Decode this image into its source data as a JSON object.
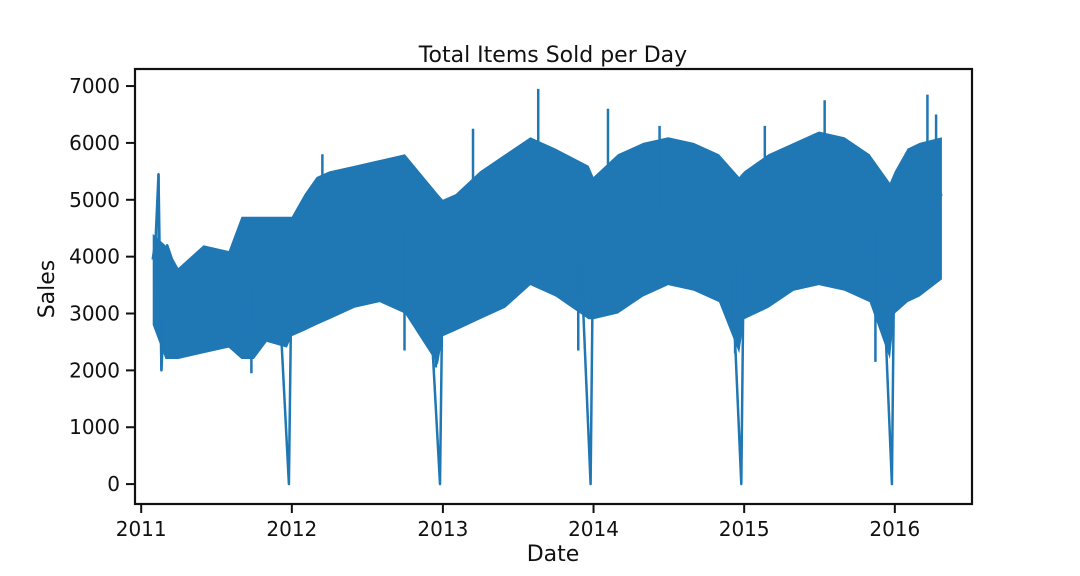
{
  "chart_data": {
    "type": "line",
    "title": "Total Items Sold per Day",
    "xlabel": "Date",
    "ylabel": "Sales",
    "x_ticks": [
      "2011",
      "2012",
      "2013",
      "2014",
      "2015",
      "2016"
    ],
    "y_ticks": [
      0,
      1000,
      2000,
      3000,
      4000,
      5000,
      6000,
      7000
    ],
    "xlim": [
      "2010-12-17",
      "2016-07-06"
    ],
    "ylim": [
      -350,
      7300
    ],
    "grid": false,
    "legend": "none",
    "series_color": "#1f77b4",
    "series": [
      {
        "points": [
          [
            "2011-01-29",
            3950
          ],
          [
            "2011-02-05",
            4300
          ],
          [
            "2011-02-12",
            5450
          ],
          [
            "2011-02-19",
            2000
          ],
          [
            "2011-03-05",
            4200
          ],
          [
            "2011-03-19",
            3900
          ],
          [
            "2011-04-02",
            2500
          ],
          [
            "2011-05-01",
            3100
          ],
          [
            "2011-06-01",
            3300
          ],
          [
            "2011-07-01",
            3000
          ],
          [
            "2011-08-01",
            3300
          ],
          [
            "2011-09-01",
            3300
          ],
          [
            "2011-09-30",
            2400
          ],
          [
            "2011-10-31",
            3200
          ],
          [
            "2011-11-30",
            3500
          ],
          [
            "2011-12-25",
            0
          ],
          [
            "2011-12-31",
            3500
          ],
          [
            "2012-01-31",
            3600
          ],
          [
            "2012-03-01",
            4100
          ],
          [
            "2012-04-01",
            4200
          ],
          [
            "2012-05-01",
            4100
          ],
          [
            "2012-06-01",
            4400
          ],
          [
            "2012-07-01",
            4300
          ],
          [
            "2012-08-01",
            4100
          ],
          [
            "2012-09-01",
            4400
          ],
          [
            "2012-10-01",
            4200
          ],
          [
            "2012-10-31",
            4000
          ],
          [
            "2012-11-30",
            3300
          ],
          [
            "2012-12-25",
            0
          ],
          [
            "2012-12-31",
            3500
          ],
          [
            "2013-01-31",
            3500
          ],
          [
            "2013-03-01",
            3800
          ],
          [
            "2013-04-01",
            4000
          ],
          [
            "2013-05-01",
            4300
          ],
          [
            "2013-06-01",
            4300
          ],
          [
            "2013-07-01",
            4500
          ],
          [
            "2013-08-01",
            4700
          ],
          [
            "2013-09-01",
            4600
          ],
          [
            "2013-10-01",
            4400
          ],
          [
            "2013-10-31",
            4300
          ],
          [
            "2013-12-01",
            4100
          ],
          [
            "2013-12-25",
            0
          ],
          [
            "2013-12-31",
            4200
          ],
          [
            "2014-01-31",
            4000
          ],
          [
            "2014-03-01",
            4100
          ],
          [
            "2014-04-01",
            4300
          ],
          [
            "2014-05-01",
            4500
          ],
          [
            "2014-06-01",
            4400
          ],
          [
            "2014-07-01",
            4600
          ],
          [
            "2014-08-01",
            4700
          ],
          [
            "2014-09-01",
            4600
          ],
          [
            "2014-10-01",
            4400
          ],
          [
            "2014-11-01",
            4100
          ],
          [
            "2014-12-01",
            4000
          ],
          [
            "2014-12-25",
            0
          ],
          [
            "2014-12-31",
            4100
          ],
          [
            "2015-01-31",
            4300
          ],
          [
            "2015-03-01",
            4400
          ],
          [
            "2015-04-01",
            4400
          ],
          [
            "2015-05-01",
            4500
          ],
          [
            "2015-06-01",
            4400
          ],
          [
            "2015-07-01",
            4600
          ],
          [
            "2015-08-01",
            4700
          ],
          [
            "2015-09-01",
            4400
          ],
          [
            "2015-10-01",
            4500
          ],
          [
            "2015-11-01",
            4100
          ],
          [
            "2015-12-01",
            4200
          ],
          [
            "2015-12-25",
            0
          ],
          [
            "2015-12-31",
            4300
          ],
          [
            "2016-01-31",
            4600
          ],
          [
            "2016-03-01",
            4800
          ],
          [
            "2016-04-01",
            4900
          ],
          [
            "2016-04-24",
            5100
          ]
        ]
      }
    ],
    "range_band": [
      [
        "2011-01-29",
        2800,
        4400
      ],
      [
        "2011-03-01",
        2200,
        4200
      ],
      [
        "2011-04-01",
        2200,
        3800
      ],
      [
        "2011-06-01",
        2300,
        4200
      ],
      [
        "2011-08-01",
        2400,
        4100
      ],
      [
        "2011-09-01",
        2200,
        4700
      ],
      [
        "2011-10-01",
        2200,
        4700
      ],
      [
        "2011-11-01",
        2500,
        4700
      ],
      [
        "2011-12-20",
        2400,
        4700
      ],
      [
        "2012-01-01",
        2600,
        4700
      ],
      [
        "2012-02-01",
        2700,
        5100
      ],
      [
        "2012-03-01",
        2800,
        5400
      ],
      [
        "2012-04-01",
        2900,
        5500
      ],
      [
        "2012-06-01",
        3100,
        5600
      ],
      [
        "2012-08-01",
        3200,
        5700
      ],
      [
        "2012-10-01",
        3000,
        5800
      ],
      [
        "2012-12-20",
        2100,
        5100
      ],
      [
        "2013-01-01",
        2600,
        5000
      ],
      [
        "2013-02-01",
        2700,
        5100
      ],
      [
        "2013-04-01",
        2900,
        5500
      ],
      [
        "2013-06-01",
        3100,
        5800
      ],
      [
        "2013-08-01",
        3500,
        6100
      ],
      [
        "2013-10-01",
        3300,
        5900
      ],
      [
        "2013-12-20",
        2900,
        5600
      ],
      [
        "2014-01-01",
        2900,
        5400
      ],
      [
        "2014-03-01",
        3000,
        5800
      ],
      [
        "2014-05-01",
        3300,
        6000
      ],
      [
        "2014-07-01",
        3500,
        6100
      ],
      [
        "2014-09-01",
        3400,
        6000
      ],
      [
        "2014-11-01",
        3200,
        5800
      ],
      [
        "2014-12-20",
        2300,
        5400
      ],
      [
        "2015-01-01",
        2900,
        5500
      ],
      [
        "2015-03-01",
        3100,
        5800
      ],
      [
        "2015-05-01",
        3400,
        6000
      ],
      [
        "2015-07-01",
        3500,
        6200
      ],
      [
        "2015-09-01",
        3400,
        6100
      ],
      [
        "2015-11-01",
        3200,
        5800
      ],
      [
        "2015-12-20",
        2200,
        5300
      ],
      [
        "2016-01-01",
        3000,
        5500
      ],
      [
        "2016-02-01",
        3200,
        5900
      ],
      [
        "2016-03-01",
        3300,
        6000
      ],
      [
        "2016-04-24",
        3600,
        6100
      ]
    ],
    "extremes": [
      [
        "2011-02-12",
        5450
      ],
      [
        "2011-02-19",
        2000
      ],
      [
        "2011-09-25",
        1950
      ],
      [
        "2012-03-15",
        5800
      ],
      [
        "2012-09-30",
        2350
      ],
      [
        "2012-12-15",
        2050
      ],
      [
        "2013-03-15",
        6250
      ],
      [
        "2013-08-20",
        6950
      ],
      [
        "2013-11-25",
        2350
      ],
      [
        "2014-02-05",
        6600
      ],
      [
        "2014-06-10",
        6300
      ],
      [
        "2014-12-10",
        2300
      ],
      [
        "2015-02-20",
        6300
      ],
      [
        "2015-07-15",
        6750
      ],
      [
        "2015-11-15",
        2150
      ],
      [
        "2016-03-20",
        6850
      ],
      [
        "2016-04-10",
        6500
      ]
    ]
  }
}
